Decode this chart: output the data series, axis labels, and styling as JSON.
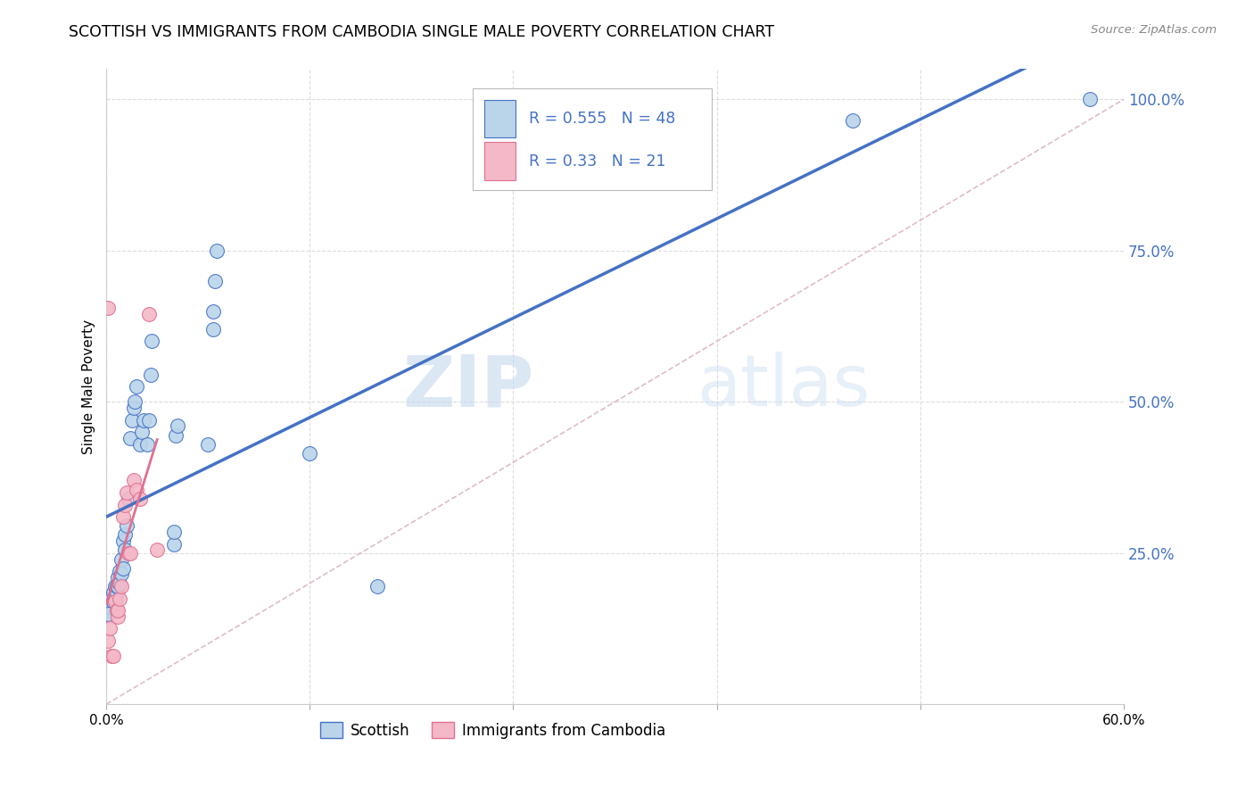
{
  "title": "SCOTTISH VS IMMIGRANTS FROM CAMBODIA SINGLE MALE POVERTY CORRELATION CHART",
  "source": "Source: ZipAtlas.com",
  "ylabel": "Single Male Poverty",
  "xlim": [
    0.0,
    0.6
  ],
  "ylim": [
    0.0,
    1.05
  ],
  "legend1_label": "Scottish",
  "legend2_label": "Immigrants from Cambodia",
  "r1": 0.555,
  "n1": 48,
  "r2": 0.33,
  "n2": 21,
  "color_blue": "#bad4ea",
  "color_pink": "#f4b8c8",
  "line_blue": "#4472c4",
  "line_pink": "#e07090",
  "line_diag": "#c8c8c8",
  "watermark_zip": "ZIP",
  "watermark_atlas": "atlas",
  "scottish_x": [
    0.002,
    0.002,
    0.003,
    0.003,
    0.004,
    0.004,
    0.005,
    0.005,
    0.006,
    0.006,
    0.007,
    0.007,
    0.008,
    0.008,
    0.009,
    0.009,
    0.01,
    0.01,
    0.011,
    0.011,
    0.012,
    0.013,
    0.014,
    0.015,
    0.016,
    0.017,
    0.018,
    0.02,
    0.021,
    0.022,
    0.024,
    0.025,
    0.026,
    0.027,
    0.04,
    0.04,
    0.041,
    0.042,
    0.06,
    0.063,
    0.063,
    0.064,
    0.065,
    0.12,
    0.16,
    0.44,
    0.58,
    0.001
  ],
  "scottish_y": [
    0.155,
    0.165,
    0.16,
    0.175,
    0.17,
    0.185,
    0.175,
    0.195,
    0.185,
    0.195,
    0.195,
    0.21,
    0.2,
    0.22,
    0.215,
    0.24,
    0.225,
    0.27,
    0.255,
    0.28,
    0.295,
    0.34,
    0.44,
    0.47,
    0.49,
    0.5,
    0.525,
    0.43,
    0.45,
    0.47,
    0.43,
    0.47,
    0.545,
    0.6,
    0.265,
    0.285,
    0.445,
    0.46,
    0.43,
    0.62,
    0.65,
    0.7,
    0.75,
    0.415,
    0.195,
    0.965,
    1.0,
    0.15
  ],
  "cambodia_x": [
    0.001,
    0.002,
    0.003,
    0.004,
    0.005,
    0.006,
    0.007,
    0.007,
    0.008,
    0.009,
    0.01,
    0.011,
    0.012,
    0.013,
    0.014,
    0.016,
    0.018,
    0.02,
    0.025,
    0.03,
    0.001
  ],
  "cambodia_y": [
    0.105,
    0.125,
    0.08,
    0.08,
    0.17,
    0.155,
    0.145,
    0.155,
    0.175,
    0.195,
    0.31,
    0.33,
    0.35,
    0.25,
    0.25,
    0.37,
    0.355,
    0.34,
    0.645,
    0.255,
    0.655
  ]
}
